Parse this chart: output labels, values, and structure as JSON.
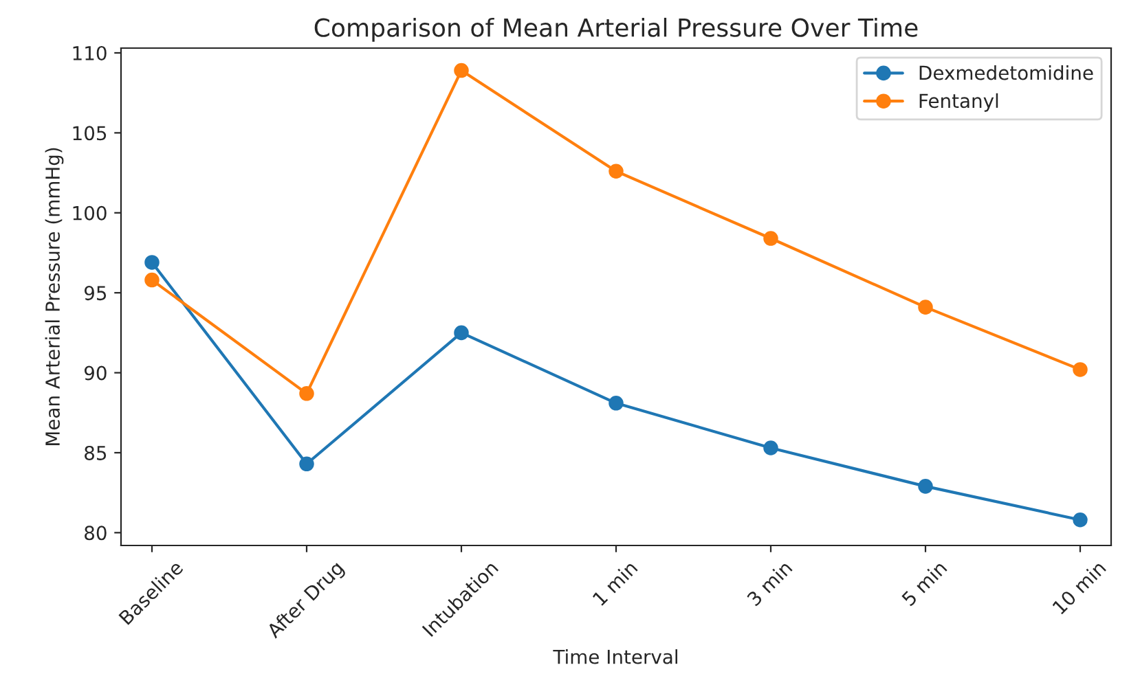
{
  "chart_data": {
    "type": "line",
    "title": "Comparison of Mean Arterial Pressure Over Time",
    "xlabel": "Time Interval",
    "ylabel": "Mean Arterial Pressure (mmHg)",
    "categories": [
      "Baseline",
      "After Drug",
      "Intubation",
      "1 min",
      "3 min",
      "5 min",
      "10 min"
    ],
    "series": [
      {
        "name": "Dexmedetomidine",
        "color": "#1f77b4",
        "values": [
          96.9,
          84.3,
          92.5,
          88.1,
          85.3,
          82.9,
          80.8
        ]
      },
      {
        "name": "Fentanyl",
        "color": "#ff7f0e",
        "values": [
          95.8,
          88.7,
          108.9,
          102.6,
          98.4,
          94.1,
          90.2
        ]
      }
    ],
    "ylim": [
      79.2,
      110.3
    ],
    "yticks": [
      80,
      85,
      90,
      95,
      100,
      105,
      110
    ],
    "marker": "circle",
    "legend": "top right",
    "grid": false
  }
}
